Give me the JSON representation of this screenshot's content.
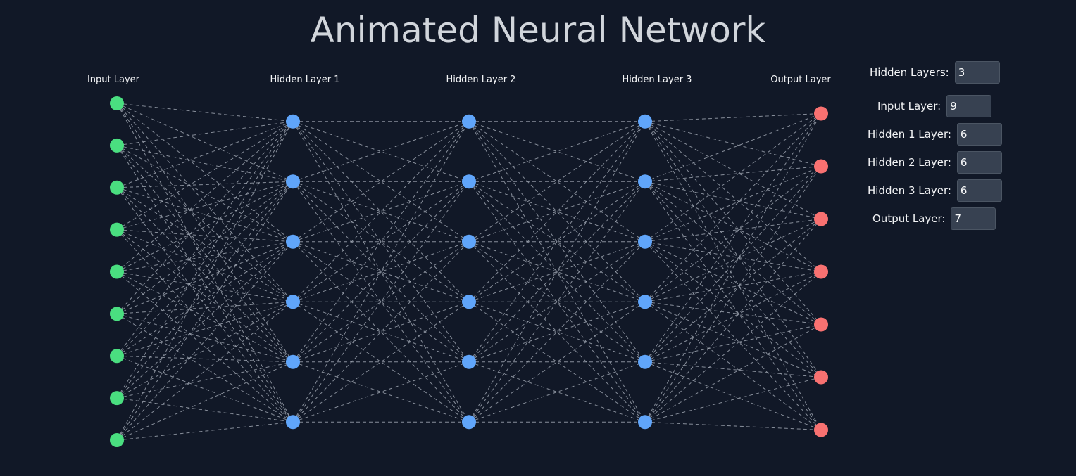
{
  "title": "Animated Neural Network",
  "layers": [
    {
      "label": "Input Layer",
      "count": 9,
      "color": "#4ade80"
    },
    {
      "label": "Hidden Layer 1",
      "count": 6,
      "color": "#60a5fa"
    },
    {
      "label": "Hidden Layer 2",
      "count": 6,
      "color": "#60a5fa"
    },
    {
      "label": "Hidden Layer 3",
      "count": 6,
      "color": "#60a5fa"
    },
    {
      "label": "Output Layer",
      "count": 7,
      "color": "#f87171"
    }
  ],
  "connection_color": "#9ca3af",
  "controls": {
    "hidden_layers": {
      "label": "Hidden Layers:",
      "value": "3"
    },
    "input_layer": {
      "label": "Input Layer:",
      "value": "9"
    },
    "hidden_1": {
      "label": "Hidden 1 Layer:",
      "value": "6"
    },
    "hidden_2": {
      "label": "Hidden 2 Layer:",
      "value": "6"
    },
    "hidden_3": {
      "label": "Hidden 3 Layer:",
      "value": "6"
    },
    "output_layer": {
      "label": "Output Layer:",
      "value": "7"
    }
  }
}
